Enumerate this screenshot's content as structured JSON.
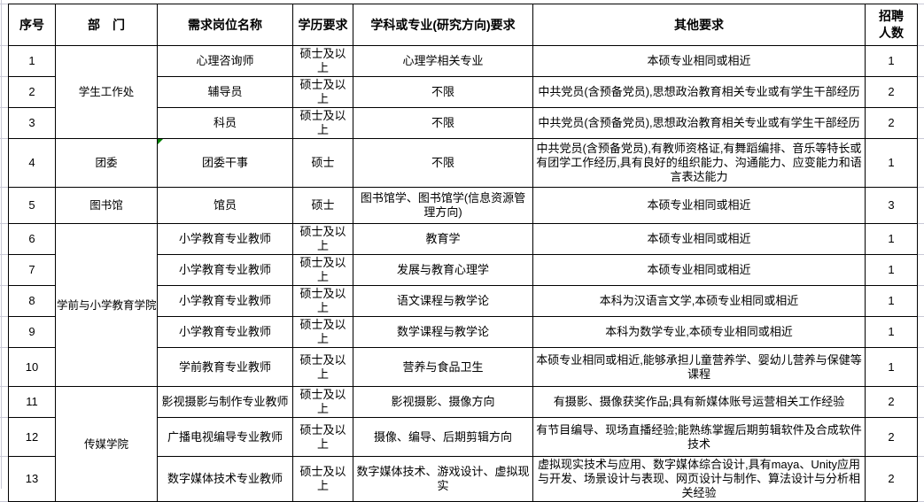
{
  "colors": {
    "table_border": "#000000",
    "gridline_remnant": "#c9c9d6",
    "cell_error_marker": "#008000",
    "text": "#000000",
    "background": "#ffffff"
  },
  "table": {
    "headers": [
      "序号",
      "部　门",
      "需求岗位名称",
      "学历要求",
      "学科或专业(研究方向)要求",
      "其他要求",
      "招聘人数"
    ],
    "rows": [
      {
        "no": "1",
        "dept": "学生工作处",
        "dept_rowspan": 3,
        "position": "心理咨询师",
        "degree": "硕士及以上",
        "major": "心理学相关专业",
        "other": "本硕专业相同或相近",
        "count": "1"
      },
      {
        "no": "2",
        "position": "辅导员",
        "degree": "硕士及以上",
        "major": "不限",
        "other": "中共党员(含预备党员),思想政治教育相关专业或有学生干部经历",
        "count": "2"
      },
      {
        "no": "3",
        "position": "科员",
        "degree": "硕士及以上",
        "major": "不限",
        "other": "中共党员(含预备党员),思想政治教育相关专业或有学生干部经历",
        "count": "2"
      },
      {
        "no": "4",
        "dept": "团委",
        "dept_rowspan": 1,
        "position": "团委干事",
        "has_error_marker": true,
        "degree": "硕士",
        "major": "不限",
        "other": "中共党员(含预备党员),有教师资格证,有舞蹈编排、音乐等特长或有团学工作经历,具有良好的组织能力、沟通能力、应变能力和语言表达能力",
        "count": "1"
      },
      {
        "no": "5",
        "dept": "图书馆",
        "dept_rowspan": 1,
        "position": "馆员",
        "degree": "硕士",
        "major": "图书馆学、图书馆学(信息资源管理方向)",
        "other": "本硕专业相同或相近",
        "count": "3"
      },
      {
        "no": "6",
        "dept": "学前与小学教育学院",
        "dept_rowspan": 5,
        "position": "小学教育专业教师",
        "degree": "硕士及以上",
        "major": "教育学",
        "other": "本硕专业相同或相近",
        "count": "1"
      },
      {
        "no": "7",
        "position": "小学教育专业教师",
        "degree": "硕士及以上",
        "major": "发展与教育心理学",
        "other": "本硕专业相同或相近",
        "count": "1"
      },
      {
        "no": "8",
        "position": "小学教育专业教师",
        "degree": "硕士及以上",
        "major": "语文课程与教学论",
        "other": "本科为汉语言文学,本硕专业相同或相近",
        "count": "1"
      },
      {
        "no": "9",
        "position": "小学教育专业教师",
        "degree": "硕士及以上",
        "major": "数学课程与教学论",
        "other": "本科为数学专业,本硕专业相同或相近",
        "count": "1"
      },
      {
        "no": "10",
        "position": "学前教育专业教师",
        "degree": "硕士及以上",
        "major": "营养与食品卫生",
        "other": "本硕专业相同或相近,能够承担儿童营养学、婴幼儿营养与保健等课程",
        "count": "1"
      },
      {
        "no": "11",
        "dept": "传媒学院",
        "dept_rowspan": 3,
        "position": "影视摄影与制作专业教师",
        "degree": "硕士及以上",
        "major": "影视摄影、摄像方向",
        "other": "有摄影、摄像获奖作品;具有新媒体账号运营相关工作经验",
        "count": "2"
      },
      {
        "no": "12",
        "position": "广播电视编导专业教师",
        "degree": "硕士及以上",
        "major": "摄像、编导、后期剪辑方向",
        "other": "有节目编导、现场直播经验;能熟练掌握后期剪辑软件及合成软件技术",
        "count": "2"
      },
      {
        "no": "13",
        "position": "数字媒体技术专业教师",
        "degree": "硕士及以上",
        "major": "数字媒体技术、游戏设计、虚拟现实",
        "other": "虚拟现实技术与应用、数字媒体综合设计,具有maya、Unity应用与开发、场景设计与表现、网页设计与制作、算法设计与分析相关经验",
        "count": "2"
      }
    ]
  }
}
